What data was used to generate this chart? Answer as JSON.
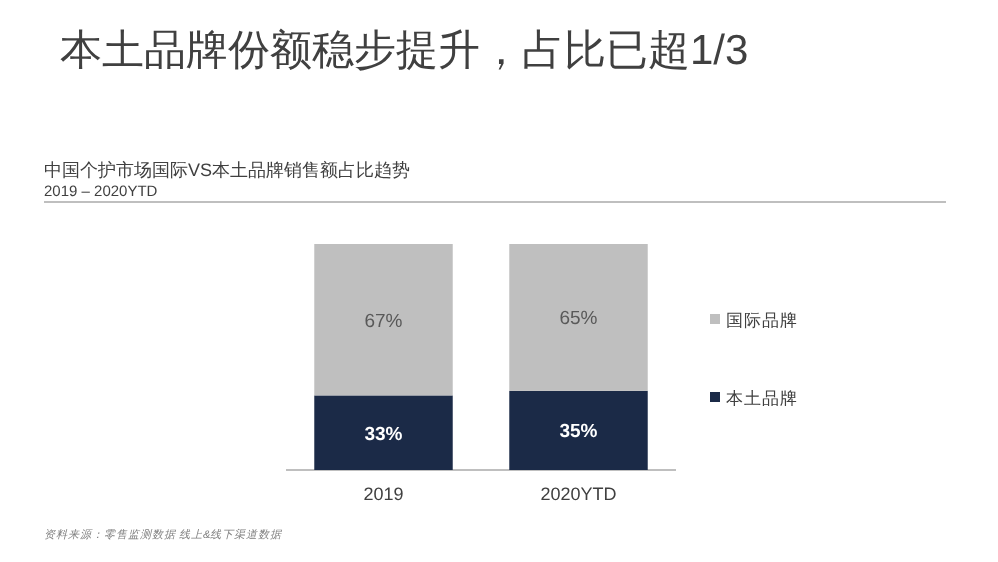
{
  "chart_data": {
    "type": "bar",
    "stacked": true,
    "title": "本土品牌份额稳步提升，占比已超1/3",
    "subtitle": "中国个护市场国际VS本土品牌销售额占比趋势",
    "annotations": [
      "2019 – 2020YTD",
      "资料来源：零售监测数据 线上&线下渠道数据"
    ],
    "categories": [
      "2019",
      "2020YTD"
    ],
    "series": [
      {
        "name": "本土品牌",
        "color": "#1b2a47",
        "values": [
          33,
          35
        ],
        "value_labels": [
          "33%",
          "35%"
        ]
      },
      {
        "name": "国际品牌",
        "color": "#bfbfbf",
        "values": [
          67,
          65
        ],
        "value_labels": [
          "67%",
          "65%"
        ]
      }
    ],
    "legend": "right"
  }
}
